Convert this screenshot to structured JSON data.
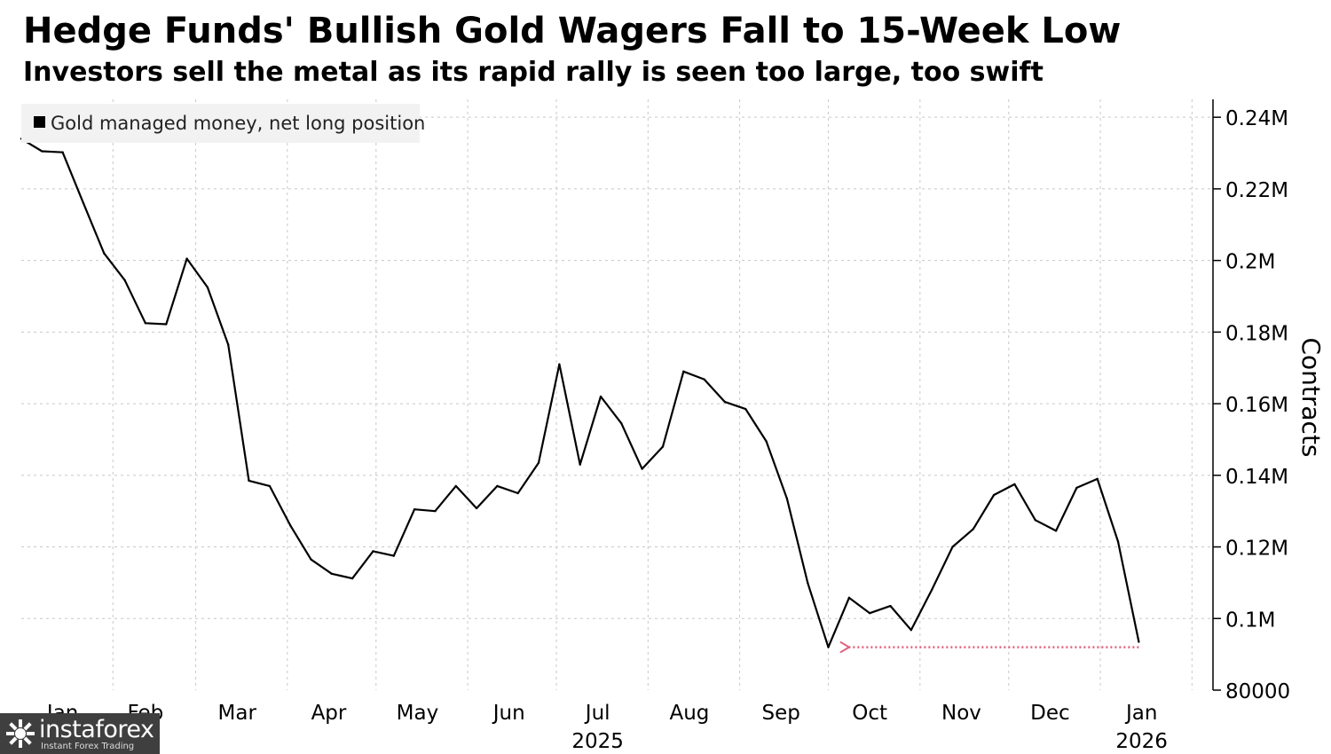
{
  "title": "Hedge Funds' Bullish Gold Wagers Fall to 15-Week Low",
  "subtitle": "Investors sell the metal as its rapid rally is seen too large, too swift",
  "watermark": {
    "name": "instaforex",
    "tagline": "Instant Forex Trading"
  },
  "chart_data": {
    "type": "line",
    "title": "Hedge Funds' Bullish Gold Wagers Fall to 15-Week Low",
    "subtitle": "Investors sell the metal as its rapid rally is seen too large, too swift",
    "xlabel": "",
    "ylabel": "Contracts",
    "legend": {
      "placement": "top-left",
      "entries": [
        "Gold managed money, net long position"
      ]
    },
    "grid": true,
    "x_range": [
      "2025-01-01",
      "2026-01-31"
    ],
    "ylim": [
      80000,
      245000
    ],
    "y_ticks": [
      {
        "value": 80000,
        "label": "80000"
      },
      {
        "value": 100000,
        "label": "0.1M"
      },
      {
        "value": 120000,
        "label": "0.12M"
      },
      {
        "value": 140000,
        "label": "0.14M"
      },
      {
        "value": 160000,
        "label": "0.16M"
      },
      {
        "value": 180000,
        "label": "0.18M"
      },
      {
        "value": 200000,
        "label": "0.2M"
      },
      {
        "value": 220000,
        "label": "0.22M"
      },
      {
        "value": 240000,
        "label": "0.24M"
      }
    ],
    "x_ticks": [
      {
        "date": "2025-01-15",
        "label": "Jan"
      },
      {
        "date": "2025-02-12",
        "label": "Feb"
      },
      {
        "date": "2025-03-15",
        "label": "Mar"
      },
      {
        "date": "2025-04-15",
        "label": "Apr"
      },
      {
        "date": "2025-05-15",
        "label": "May"
      },
      {
        "date": "2025-06-15",
        "label": "Jun"
      },
      {
        "date": "2025-07-15",
        "label": "Jul"
      },
      {
        "date": "2025-08-15",
        "label": "Aug"
      },
      {
        "date": "2025-09-15",
        "label": "Sep"
      },
      {
        "date": "2025-10-15",
        "label": "Oct"
      },
      {
        "date": "2025-11-15",
        "label": "Nov"
      },
      {
        "date": "2025-12-15",
        "label": "Dec"
      },
      {
        "date": "2026-01-15",
        "label": "Jan"
      }
    ],
    "year_labels": [
      {
        "date": "2025-07-15",
        "label": "2025"
      },
      {
        "date": "2026-01-15",
        "label": "2026"
      }
    ],
    "series": [
      {
        "name": "Gold managed money, net long position",
        "color": "#000000",
        "points": [
          [
            "2025-01-01",
            234000
          ],
          [
            "2025-01-08",
            230500
          ],
          [
            "2025-01-15",
            230200
          ],
          [
            "2025-01-22",
            216000
          ],
          [
            "2025-01-29",
            202000
          ],
          [
            "2025-02-05",
            194500
          ],
          [
            "2025-02-12",
            182500
          ],
          [
            "2025-02-19",
            182200
          ],
          [
            "2025-02-26",
            200500
          ],
          [
            "2025-03-05",
            192500
          ],
          [
            "2025-03-12",
            176500
          ],
          [
            "2025-03-19",
            138500
          ],
          [
            "2025-03-26",
            137000
          ],
          [
            "2025-04-02",
            126000
          ],
          [
            "2025-04-09",
            116500
          ],
          [
            "2025-04-16",
            112500
          ],
          [
            "2025-04-23",
            111200
          ],
          [
            "2025-04-30",
            118800
          ],
          [
            "2025-05-07",
            117500
          ],
          [
            "2025-05-14",
            130500
          ],
          [
            "2025-05-21",
            130000
          ],
          [
            "2025-05-28",
            137000
          ],
          [
            "2025-06-04",
            130800
          ],
          [
            "2025-06-11",
            137000
          ],
          [
            "2025-06-18",
            135000
          ],
          [
            "2025-06-25",
            143500
          ],
          [
            "2025-07-02",
            171000
          ],
          [
            "2025-07-09",
            143000
          ],
          [
            "2025-07-16",
            162000
          ],
          [
            "2025-07-23",
            154500
          ],
          [
            "2025-07-30",
            141800
          ],
          [
            "2025-08-06",
            148000
          ],
          [
            "2025-08-13",
            169000
          ],
          [
            "2025-08-20",
            166800
          ],
          [
            "2025-08-27",
            160500
          ],
          [
            "2025-09-03",
            158500
          ],
          [
            "2025-09-10",
            149500
          ],
          [
            "2025-09-17",
            133500
          ],
          [
            "2025-09-24",
            110000
          ],
          [
            "2025-10-01",
            92000
          ],
          [
            "2025-10-08",
            105800
          ],
          [
            "2025-10-15",
            101500
          ],
          [
            "2025-10-22",
            103500
          ],
          [
            "2025-10-29",
            96800
          ],
          [
            "2025-11-05",
            108000
          ],
          [
            "2025-11-12",
            120000
          ],
          [
            "2025-11-19",
            125000
          ],
          [
            "2025-11-26",
            134500
          ],
          [
            "2025-12-03",
            137500
          ],
          [
            "2025-12-10",
            127500
          ],
          [
            "2025-12-17",
            124500
          ],
          [
            "2025-12-24",
            136500
          ],
          [
            "2025-12-31",
            139000
          ],
          [
            "2026-01-07",
            121500
          ],
          [
            "2026-01-14",
            93500
          ]
        ]
      }
    ],
    "annotations": [
      {
        "type": "arrow",
        "style": "dotted",
        "color": "#e0607a",
        "from": [
          "2026-01-14",
          92000
        ],
        "to": [
          "2025-10-08",
          92000
        ]
      }
    ]
  }
}
